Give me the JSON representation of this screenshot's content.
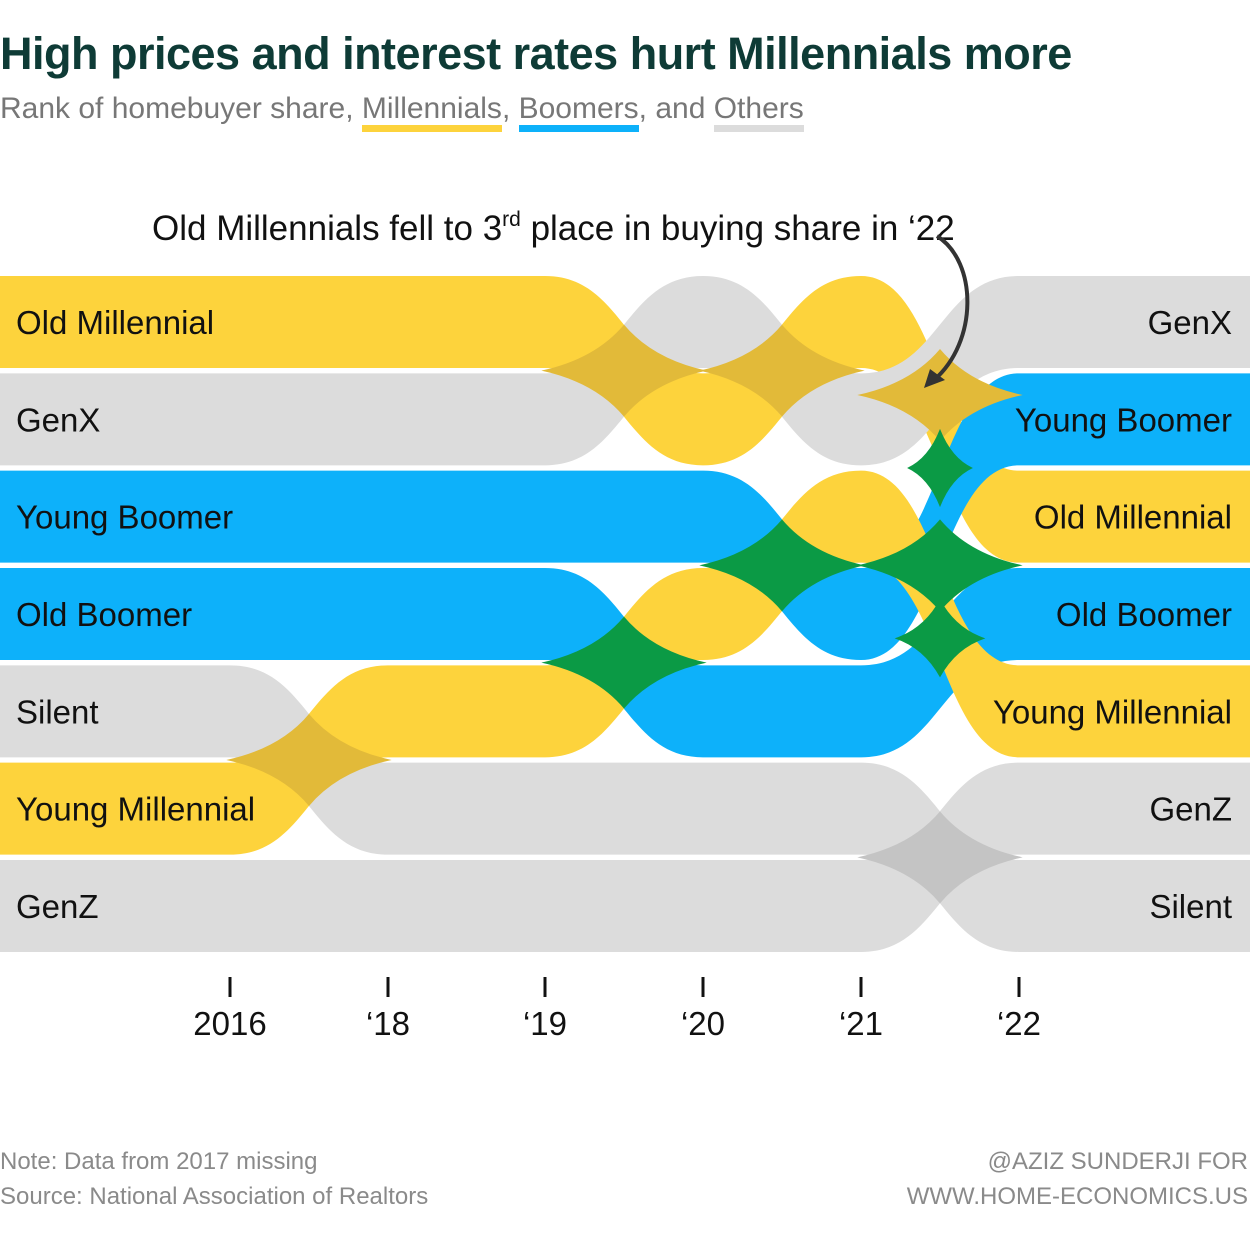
{
  "title": "High prices and interest rates hurt Millennials more",
  "subtitle": {
    "prefix": "Rank of homebuyer share, ",
    "millennials": "Millennials",
    "sep1": ", ",
    "boomers": "Boomers",
    "sep2": ", and ",
    "others": "Others"
  },
  "colors": {
    "millennial": "#fdd33c",
    "boomer": "#0db1fa",
    "other": "#dcdcdc",
    "title": "#0e3b36",
    "crossing_mb": "#0b9a45",
    "crossing_mo": "#e2ba39",
    "crossing_oo": "#c4c4c4"
  },
  "annotation": {
    "text_before": "Old Millennials fell to 3",
    "superscript": "rd",
    "text_after": " place in buying share in ‘22",
    "arrow": "curved-arrow-icon"
  },
  "footer": {
    "note": "Note: Data from 2017 missing",
    "source": "Source: National Association of Realtors",
    "credit_line1": "@AZIZ SUNDERJI FOR",
    "credit_line2": "WWW.HOME-ECONOMICS.US"
  },
  "chart_data": {
    "type": "bump",
    "title": "High prices and interest rates hurt Millennials more",
    "subtitle": "Rank of homebuyer share, Millennials, Boomers, and Others",
    "x_labels": [
      "2016",
      "‘18",
      "‘19",
      "‘20",
      "‘21",
      "‘22"
    ],
    "note": "Data from 2017 missing",
    "rank_direction": "1 = highest share (top)",
    "series": [
      {
        "name": "Old Millennial",
        "group": "millennial",
        "ranks": [
          1,
          1,
          1,
          2,
          1,
          3
        ]
      },
      {
        "name": "GenX",
        "group": "other",
        "ranks": [
          2,
          2,
          2,
          1,
          2,
          1
        ]
      },
      {
        "name": "Young Boomer",
        "group": "boomer",
        "ranks": [
          3,
          3,
          3,
          3,
          4,
          2
        ]
      },
      {
        "name": "Old Boomer",
        "group": "boomer",
        "ranks": [
          4,
          4,
          4,
          5,
          5,
          4
        ]
      },
      {
        "name": "Silent",
        "group": "other",
        "ranks": [
          5,
          6,
          6,
          6,
          6,
          7
        ]
      },
      {
        "name": "Young Millennial",
        "group": "millennial",
        "ranks": [
          6,
          5,
          5,
          4,
          3,
          5
        ]
      },
      {
        "name": "GenZ",
        "group": "other",
        "ranks": [
          7,
          7,
          7,
          7,
          7,
          6
        ]
      }
    ],
    "left_labels": [
      "Old Millennial",
      "GenX",
      "Young Boomer",
      "Old Boomer",
      "Silent",
      "Young Millennial",
      "GenZ"
    ],
    "right_labels": [
      "GenX",
      "Young Boomer",
      "Old Millennial",
      "Old Boomer",
      "Young Millennial",
      "GenZ",
      "Silent"
    ],
    "annotation": "Old Millennials fell to 3rd place in buying share in ‘22"
  }
}
